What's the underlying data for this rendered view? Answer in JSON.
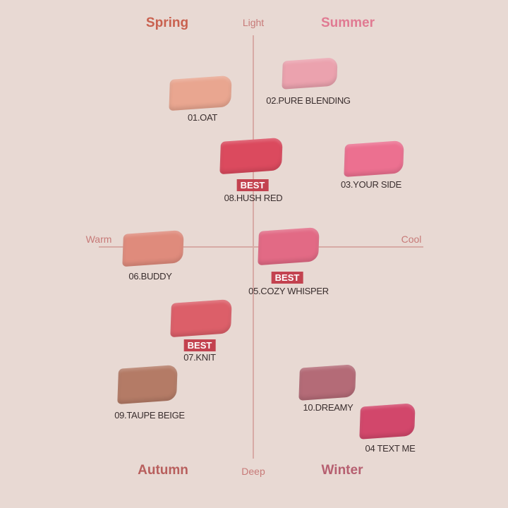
{
  "seasons": {
    "spring": "Spring",
    "summer": "Summer",
    "autumn": "Autumn",
    "winter": "Winter"
  },
  "axes": {
    "top": "Light",
    "bottom": "Deep",
    "left": "Warm",
    "right": "Cool"
  },
  "badge": "BEST",
  "shades": [
    {
      "label": "01.OAT",
      "color": "#e9a690",
      "best": false
    },
    {
      "label": "02.PURE BLENDING",
      "color": "#eba2ae",
      "best": false
    },
    {
      "label": "03.YOUR SIDE",
      "color": "#ec7090",
      "best": false
    },
    {
      "label": "04 TEXT ME",
      "color": "#d2476b",
      "best": false
    },
    {
      "label": "05.COZY WHISPER",
      "color": "#e26a85",
      "best": true
    },
    {
      "label": "06.BUDDY",
      "color": "#df8b7c",
      "best": false
    },
    {
      "label": "07.KNIT",
      "color": "#dc5f69",
      "best": true
    },
    {
      "label": "08.HUSH RED",
      "color": "#db4a5e",
      "best": true
    },
    {
      "label": "09.TAUPE BEIGE",
      "color": "#b47b66",
      "best": false
    },
    {
      "label": "10.DREAMY",
      "color": "#b46b77",
      "best": false
    }
  ]
}
